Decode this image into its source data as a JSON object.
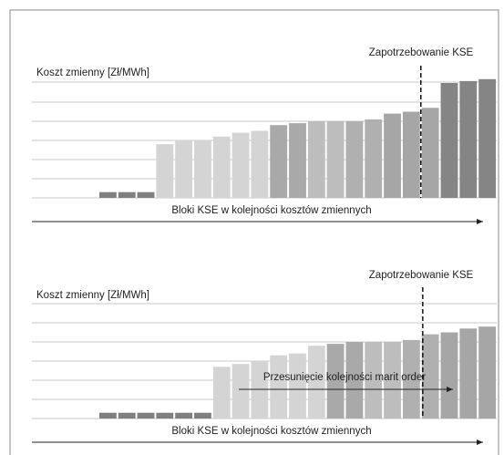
{
  "chart_data": [
    {
      "type": "bar",
      "annotation": "Zapotrzebowanie KSE",
      "y_label": "Koszt zmienny [Zł/MWh]",
      "x_label": "Bloki KSE w kolejności kosztów zmiennych",
      "values": [
        0.3,
        0.3,
        0.3,
        2.8,
        3.0,
        3.0,
        3.2,
        3.4,
        3.5,
        3.8,
        3.9,
        4.0,
        4.0,
        4.0,
        4.1,
        4.4,
        4.5,
        4.7,
        6.0,
        6.1,
        6.2
      ],
      "colors": [
        "#7f7f7f",
        "#7f7f7f",
        "#7f7f7f",
        "#d4d4d4",
        "#d4d4d4",
        "#d4d4d4",
        "#d4d4d4",
        "#d4d4d4",
        "#d4d4d4",
        "#a9a9a9",
        "#a9a9a9",
        "#bdbdbd",
        "#bdbdbd",
        "#b0b0b0",
        "#b0b0b0",
        "#a6a6a6",
        "#a6a6a6",
        "#a6a6a6",
        "#858585",
        "#858585",
        "#858585"
      ],
      "demand_position": 17,
      "ylim": [
        0,
        6.8
      ],
      "gridlines": [
        1,
        2,
        3,
        4,
        5
      ]
    },
    {
      "type": "bar",
      "annotation": "Zapotrzebowanie KSE",
      "y_label": "Koszt zmienny  [Zł/MWh]",
      "x_label": "Bloki KSE w kolejności kosztów zmiennych",
      "shift_label": "Przesunięcie kolejności marit order",
      "values": [
        0.3,
        0.3,
        0.3,
        0.3,
        0.3,
        0.3,
        2.7,
        2.85,
        3.0,
        3.3,
        3.4,
        3.8,
        3.9,
        4.0,
        4.0,
        4.0,
        4.1,
        4.4,
        4.5,
        4.7,
        4.8
      ],
      "colors": [
        "#7f7f7f",
        "#7f7f7f",
        "#7f7f7f",
        "#7f7f7f",
        "#7f7f7f",
        "#7f7f7f",
        "#d4d4d4",
        "#d4d4d4",
        "#d4d4d4",
        "#d4d4d4",
        "#d4d4d4",
        "#d4d4d4",
        "#a9a9a9",
        "#a9a9a9",
        "#bdbdbd",
        "#bdbdbd",
        "#b0b0b0",
        "#b0b0b0",
        "#a6a6a6",
        "#a6a6a6",
        "#a6a6a6"
      ],
      "demand_position": 17.1,
      "ylim": [
        0,
        6.8
      ],
      "gridlines": [
        1,
        2,
        3,
        4,
        5
      ]
    }
  ]
}
